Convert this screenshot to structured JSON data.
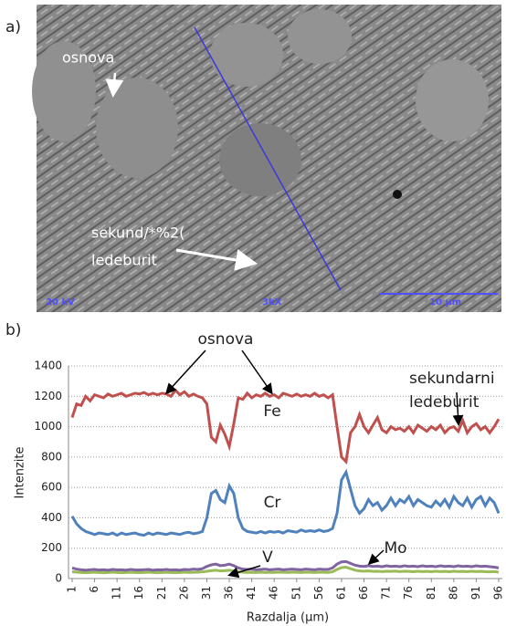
{
  "panel_a": {
    "label": "a)",
    "texts": [
      "osnova",
      "sekund/*%2(",
      "ledeburit"
    ],
    "footer": [
      "20 kV",
      "3kX",
      "10 µm"
    ]
  },
  "chart_data": {
    "type": "line",
    "panel_label": "b)",
    "x_label": "Razdalja (µm)",
    "y_label": "Intenzite",
    "x": [
      1,
      2,
      3,
      4,
      5,
      6,
      7,
      8,
      9,
      10,
      11,
      12,
      13,
      14,
      15,
      16,
      17,
      18,
      19,
      20,
      21,
      22,
      23,
      24,
      25,
      26,
      27,
      28,
      29,
      30,
      31,
      32,
      33,
      34,
      35,
      36,
      37,
      38,
      39,
      40,
      41,
      42,
      43,
      44,
      45,
      46,
      47,
      48,
      49,
      50,
      51,
      52,
      53,
      54,
      55,
      56,
      57,
      58,
      59,
      60,
      61,
      62,
      63,
      64,
      65,
      66,
      67,
      68,
      69,
      70,
      71,
      72,
      73,
      74,
      75,
      76,
      77,
      78,
      79,
      80,
      81,
      82,
      83,
      84,
      85,
      86,
      87,
      88,
      89,
      90,
      91,
      92,
      93,
      94,
      95,
      96
    ],
    "xlim": [
      1,
      96
    ],
    "xticks": [
      1,
      6,
      11,
      16,
      21,
      26,
      31,
      36,
      41,
      46,
      51,
      56,
      61,
      66,
      71,
      76,
      81,
      86,
      91,
      96
    ],
    "ylim": [
      0,
      1400
    ],
    "yticks": [
      0,
      200,
      400,
      600,
      800,
      1000,
      1200,
      1400
    ],
    "grid": true,
    "series": [
      {
        "name": "Fe",
        "color": "#c0504d",
        "values": [
          1060,
          1150,
          1140,
          1200,
          1170,
          1210,
          1200,
          1190,
          1215,
          1200,
          1210,
          1220,
          1200,
          1210,
          1220,
          1215,
          1225,
          1210,
          1220,
          1210,
          1220,
          1215,
          1200,
          1240,
          1210,
          1230,
          1200,
          1215,
          1200,
          1190,
          1150,
          930,
          900,
          1010,
          950,
          870,
          1020,
          1190,
          1180,
          1220,
          1190,
          1210,
          1200,
          1220,
          1200,
          1210,
          1190,
          1220,
          1210,
          1200,
          1215,
          1200,
          1210,
          1200,
          1220,
          1200,
          1210,
          1190,
          1210,
          1000,
          800,
          770,
          960,
          1000,
          1080,
          1000,
          960,
          1010,
          1060,
          980,
          960,
          1000,
          980,
          990,
          970,
          1000,
          960,
          1010,
          990,
          970,
          1000,
          980,
          1010,
          960,
          990,
          1000,
          970,
          1040,
          960,
          1000,
          1020,
          980,
          1000,
          960,
          1000,
          1050
        ]
      },
      {
        "name": "Cr",
        "color": "#4f81bd",
        "values": [
          410,
          360,
          330,
          310,
          300,
          290,
          300,
          295,
          290,
          300,
          285,
          300,
          290,
          295,
          300,
          290,
          285,
          300,
          290,
          300,
          295,
          290,
          300,
          295,
          290,
          300,
          305,
          295,
          300,
          310,
          400,
          560,
          580,
          520,
          500,
          610,
          560,
          400,
          330,
          310,
          305,
          300,
          310,
          300,
          310,
          305,
          310,
          300,
          315,
          310,
          305,
          320,
          310,
          315,
          310,
          320,
          310,
          315,
          330,
          430,
          650,
          700,
          590,
          480,
          430,
          460,
          520,
          480,
          500,
          450,
          480,
          530,
          480,
          520,
          500,
          540,
          480,
          520,
          500,
          480,
          470,
          510,
          480,
          520,
          470,
          540,
          500,
          480,
          530,
          470,
          520,
          540,
          480,
          530,
          500,
          430
        ]
      },
      {
        "name": "V",
        "color": "#9bbb59",
        "values": [
          45,
          42,
          40,
          38,
          40,
          42,
          40,
          38,
          40,
          42,
          40,
          38,
          40,
          41,
          40,
          39,
          40,
          42,
          40,
          38,
          40,
          41,
          40,
          39,
          40,
          42,
          40,
          41,
          42,
          44,
          48,
          52,
          55,
          50,
          52,
          55,
          50,
          45,
          42,
          40,
          41,
          40,
          42,
          40,
          41,
          40,
          42,
          41,
          40,
          42,
          41,
          40,
          42,
          41,
          40,
          42,
          41,
          40,
          45,
          60,
          72,
          75,
          65,
          55,
          50,
          48,
          50,
          47,
          48,
          46,
          48,
          47,
          49,
          46,
          48,
          47,
          45,
          48,
          46,
          47,
          45,
          48,
          46,
          47,
          45,
          48,
          46,
          47,
          45,
          48,
          46,
          47,
          45,
          44,
          46,
          42
        ]
      },
      {
        "name": "Mo",
        "color": "#8064a2",
        "values": [
          70,
          62,
          58,
          55,
          58,
          60,
          56,
          58,
          55,
          60,
          57,
          58,
          55,
          60,
          57,
          56,
          58,
          60,
          55,
          58,
          57,
          60,
          56,
          58,
          55,
          60,
          58,
          62,
          60,
          65,
          80,
          90,
          95,
          85,
          88,
          95,
          85,
          70,
          62,
          60,
          62,
          58,
          60,
          62,
          58,
          60,
          62,
          58,
          60,
          62,
          60,
          58,
          62,
          60,
          58,
          62,
          60,
          60,
          70,
          95,
          110,
          112,
          100,
          88,
          82,
          80,
          85,
          80,
          82,
          78,
          84,
          80,
          82,
          78,
          84,
          80,
          82,
          78,
          84,
          80,
          82,
          78,
          84,
          80,
          82,
          78,
          84,
          80,
          82,
          78,
          84,
          80,
          82,
          78,
          75,
          70
        ]
      }
    ],
    "annotations": [
      "osnova",
      "sekundarni",
      "ledeburit"
    ]
  }
}
